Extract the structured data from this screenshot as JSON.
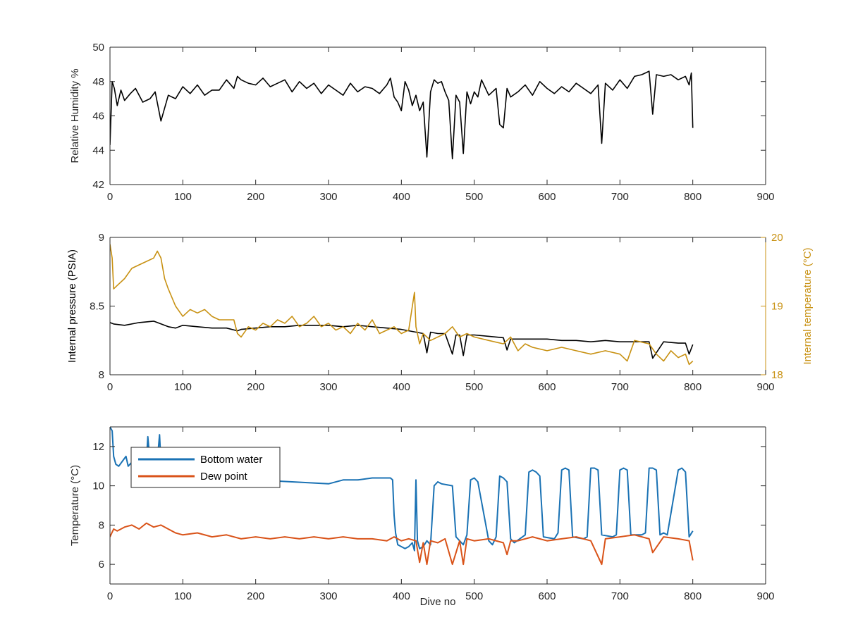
{
  "colors": {
    "black_series": "#000000",
    "gold_series": "#C89112",
    "blue_series": "#1A72B4",
    "orange_series": "#D95319",
    "axis": "#262626"
  },
  "chart_data": [
    {
      "type": "line",
      "xlabel": "",
      "ylabel": "Relative Humidity %",
      "xlim": [
        0,
        900
      ],
      "ylim": [
        42,
        50
      ],
      "xticks": [
        "0",
        "100",
        "200",
        "300",
        "400",
        "500",
        "600",
        "700",
        "800",
        "900"
      ],
      "yticks": [
        "42",
        "44",
        "46",
        "48",
        "50"
      ],
      "grid": false,
      "series": [
        {
          "name": "",
          "color": "#000000",
          "x": [
            0,
            3,
            6,
            10,
            15,
            20,
            28,
            35,
            45,
            55,
            62,
            70,
            80,
            90,
            100,
            110,
            120,
            130,
            140,
            150,
            160,
            170,
            175,
            180,
            190,
            200,
            210,
            220,
            230,
            240,
            250,
            260,
            270,
            280,
            290,
            300,
            310,
            320,
            330,
            340,
            350,
            360,
            370,
            380,
            385,
            390,
            395,
            400,
            405,
            410,
            415,
            420,
            425,
            430,
            435,
            440,
            445,
            450,
            455,
            460,
            465,
            470,
            475,
            480,
            485,
            490,
            495,
            500,
            505,
            510,
            520,
            530,
            535,
            540,
            545,
            550,
            560,
            570,
            580,
            590,
            600,
            610,
            620,
            630,
            640,
            650,
            660,
            670,
            675,
            680,
            690,
            700,
            710,
            720,
            730,
            740,
            745,
            750,
            760,
            770,
            780,
            790,
            795,
            798,
            800
          ],
          "y": [
            44.3,
            48.0,
            47.6,
            46.6,
            47.5,
            46.9,
            47.3,
            47.6,
            46.8,
            47.0,
            47.4,
            45.7,
            47.2,
            47.0,
            47.7,
            47.3,
            47.8,
            47.2,
            47.5,
            47.5,
            48.1,
            47.6,
            48.3,
            48.1,
            47.9,
            47.8,
            48.2,
            47.7,
            47.9,
            48.1,
            47.4,
            48.0,
            47.6,
            47.9,
            47.3,
            47.8,
            47.5,
            47.2,
            47.9,
            47.4,
            47.7,
            47.6,
            47.3,
            47.8,
            48.2,
            47.1,
            46.8,
            46.3,
            48.0,
            47.5,
            46.6,
            47.2,
            46.3,
            46.8,
            43.6,
            47.4,
            48.1,
            47.9,
            48.0,
            47.4,
            46.9,
            43.5,
            47.2,
            46.8,
            43.8,
            47.4,
            46.7,
            47.4,
            47.1,
            48.1,
            47.2,
            47.6,
            45.5,
            45.3,
            47.6,
            47.1,
            47.4,
            47.8,
            47.2,
            48.0,
            47.6,
            47.3,
            47.7,
            47.4,
            47.9,
            47.6,
            47.3,
            47.8,
            44.4,
            47.9,
            47.5,
            48.1,
            47.6,
            48.3,
            48.4,
            48.6,
            46.1,
            48.4,
            48.3,
            48.4,
            48.1,
            48.3,
            47.8,
            48.5,
            45.3
          ]
        }
      ]
    },
    {
      "type": "line",
      "xlabel": "",
      "ylabel": "Internal pressure (PSIA)",
      "ylabel_right": "Internal temperature (°C)",
      "xlim": [
        0,
        900
      ],
      "ylim": [
        8,
        9
      ],
      "ylim_right": [
        18,
        20
      ],
      "xticks": [
        "0",
        "100",
        "200",
        "300",
        "400",
        "500",
        "600",
        "700",
        "800",
        "900"
      ],
      "yticks": [
        "8",
        "8.5",
        "9"
      ],
      "yticks_right": [
        "18",
        "19",
        "20"
      ],
      "grid": false,
      "series": [
        {
          "name": "",
          "axis": "left",
          "color": "#000000",
          "x": [
            0,
            5,
            20,
            40,
            60,
            75,
            80,
            90,
            100,
            120,
            140,
            160,
            175,
            180,
            200,
            220,
            240,
            260,
            280,
            300,
            320,
            340,
            360,
            380,
            400,
            420,
            430,
            435,
            440,
            450,
            460,
            470,
            475,
            480,
            485,
            490,
            500,
            520,
            540,
            545,
            550,
            560,
            580,
            600,
            620,
            640,
            660,
            680,
            700,
            720,
            740,
            745,
            760,
            780,
            790,
            795,
            800
          ],
          "y": [
            8.38,
            8.37,
            8.36,
            8.38,
            8.39,
            8.36,
            8.35,
            8.34,
            8.36,
            8.35,
            8.34,
            8.34,
            8.32,
            8.33,
            8.34,
            8.35,
            8.35,
            8.36,
            8.36,
            8.36,
            8.35,
            8.36,
            8.35,
            8.34,
            8.33,
            8.31,
            8.3,
            8.16,
            8.31,
            8.3,
            8.3,
            8.15,
            8.29,
            8.29,
            8.14,
            8.29,
            8.29,
            8.28,
            8.27,
            8.18,
            8.26,
            8.26,
            8.26,
            8.26,
            8.25,
            8.25,
            8.24,
            8.25,
            8.24,
            8.24,
            8.24,
            8.12,
            8.24,
            8.23,
            8.23,
            8.15,
            8.22
          ]
        },
        {
          "name": "",
          "axis": "right",
          "color": "#C89112",
          "x": [
            0,
            3,
            5,
            10,
            20,
            30,
            40,
            50,
            60,
            65,
            70,
            75,
            80,
            90,
            100,
            110,
            120,
            130,
            140,
            150,
            160,
            170,
            175,
            180,
            190,
            200,
            210,
            220,
            230,
            240,
            250,
            260,
            270,
            280,
            290,
            300,
            310,
            320,
            330,
            340,
            350,
            360,
            370,
            380,
            390,
            400,
            410,
            418,
            420,
            425,
            430,
            440,
            450,
            460,
            470,
            480,
            490,
            500,
            520,
            540,
            550,
            560,
            570,
            580,
            600,
            620,
            640,
            660,
            680,
            700,
            710,
            720,
            740,
            750,
            760,
            770,
            780,
            790,
            795,
            800
          ],
          "y": [
            19.9,
            19.7,
            19.25,
            19.3,
            19.4,
            19.55,
            19.6,
            19.65,
            19.7,
            19.8,
            19.7,
            19.4,
            19.25,
            19.0,
            18.85,
            18.95,
            18.9,
            18.95,
            18.85,
            18.8,
            18.8,
            18.8,
            18.6,
            18.55,
            18.7,
            18.65,
            18.75,
            18.7,
            18.8,
            18.75,
            18.85,
            18.7,
            18.75,
            18.85,
            18.7,
            18.75,
            18.65,
            18.7,
            18.6,
            18.75,
            18.65,
            18.8,
            18.6,
            18.65,
            18.7,
            18.6,
            18.65,
            19.2,
            18.7,
            18.45,
            18.6,
            18.5,
            18.55,
            18.6,
            18.7,
            18.55,
            18.6,
            18.55,
            18.5,
            18.45,
            18.55,
            18.35,
            18.45,
            18.4,
            18.35,
            18.4,
            18.35,
            18.3,
            18.35,
            18.3,
            18.2,
            18.5,
            18.45,
            18.3,
            18.2,
            18.35,
            18.25,
            18.3,
            18.15,
            18.2
          ]
        }
      ]
    },
    {
      "type": "line",
      "xlabel": "Dive no",
      "ylabel": "Temperature (°C)",
      "xlim": [
        0,
        900
      ],
      "ylim": [
        5,
        13
      ],
      "xticks": [
        "0",
        "100",
        "200",
        "300",
        "400",
        "500",
        "600",
        "700",
        "800",
        "900"
      ],
      "yticks": [
        "6",
        "8",
        "10",
        "12"
      ],
      "grid": false,
      "legend_position": "top-left",
      "series": [
        {
          "name": "Bottom water",
          "color": "#1A72B4",
          "x": [
            0,
            3,
            5,
            8,
            12,
            18,
            22,
            25,
            30,
            40,
            50,
            52,
            55,
            60,
            65,
            68,
            70,
            75,
            80,
            100,
            150,
            200,
            250,
            300,
            320,
            340,
            360,
            380,
            385,
            388,
            390,
            392,
            395,
            400,
            405,
            410,
            415,
            418,
            420,
            422,
            425,
            430,
            435,
            440,
            445,
            450,
            455,
            470,
            475,
            480,
            485,
            490,
            495,
            500,
            505,
            520,
            525,
            530,
            535,
            540,
            545,
            550,
            555,
            570,
            575,
            580,
            585,
            590,
            595,
            610,
            615,
            620,
            625,
            630,
            635,
            650,
            655,
            660,
            665,
            670,
            675,
            690,
            695,
            700,
            705,
            710,
            715,
            730,
            735,
            740,
            745,
            750,
            755,
            760,
            765,
            780,
            785,
            790,
            795,
            800
          ],
          "y": [
            13.0,
            12.8,
            11.5,
            11.1,
            11.0,
            11.3,
            11.5,
            11.0,
            11.2,
            11.3,
            11.3,
            12.5,
            11.2,
            11.4,
            11.3,
            12.6,
            11.2,
            11.0,
            10.6,
            10.5,
            10.4,
            10.3,
            10.2,
            10.1,
            10.3,
            10.3,
            10.4,
            10.4,
            10.4,
            10.3,
            8.5,
            7.6,
            7.0,
            6.9,
            6.8,
            6.9,
            7.1,
            6.7,
            10.3,
            7.2,
            6.8,
            6.9,
            7.2,
            7.0,
            10.0,
            10.2,
            10.1,
            10.0,
            7.4,
            7.2,
            7.0,
            7.5,
            10.3,
            10.4,
            10.2,
            7.2,
            7.0,
            7.4,
            10.5,
            10.4,
            10.2,
            7.3,
            7.1,
            7.5,
            10.7,
            10.8,
            10.7,
            10.5,
            7.4,
            7.3,
            7.6,
            10.8,
            10.9,
            10.8,
            7.4,
            7.3,
            7.4,
            10.9,
            10.9,
            10.8,
            7.5,
            7.4,
            7.5,
            10.8,
            10.9,
            10.8,
            7.5,
            7.5,
            7.6,
            10.9,
            10.9,
            10.8,
            7.5,
            7.6,
            7.5,
            10.8,
            10.9,
            10.7,
            7.4,
            7.7
          ]
        },
        {
          "name": "Dew point",
          "color": "#D95319",
          "x": [
            0,
            5,
            10,
            20,
            30,
            40,
            50,
            60,
            70,
            80,
            90,
            100,
            120,
            140,
            160,
            180,
            200,
            220,
            240,
            260,
            280,
            300,
            320,
            340,
            360,
            380,
            390,
            400,
            410,
            420,
            425,
            430,
            435,
            440,
            450,
            460,
            470,
            480,
            485,
            490,
            500,
            520,
            540,
            545,
            550,
            560,
            580,
            600,
            620,
            640,
            660,
            675,
            680,
            700,
            720,
            740,
            745,
            760,
            780,
            795,
            800
          ],
          "y": [
            7.4,
            7.8,
            7.7,
            7.9,
            8.0,
            7.8,
            8.1,
            7.9,
            8.0,
            7.8,
            7.6,
            7.5,
            7.6,
            7.4,
            7.5,
            7.3,
            7.4,
            7.3,
            7.4,
            7.3,
            7.4,
            7.3,
            7.4,
            7.3,
            7.3,
            7.2,
            7.4,
            7.2,
            7.3,
            7.2,
            6.1,
            7.1,
            6.0,
            7.2,
            7.1,
            7.3,
            6.0,
            7.2,
            6.0,
            7.3,
            7.2,
            7.3,
            7.1,
            6.5,
            7.2,
            7.2,
            7.4,
            7.2,
            7.3,
            7.4,
            7.2,
            6.0,
            7.3,
            7.4,
            7.5,
            7.3,
            6.6,
            7.4,
            7.3,
            7.2,
            6.2
          ]
        }
      ]
    }
  ]
}
